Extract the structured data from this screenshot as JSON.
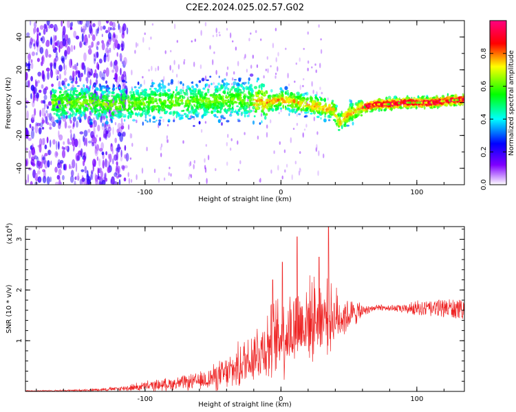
{
  "title": "C2E2.2024.025.02.57.G02",
  "chart_data": [
    {
      "type": "heatmap",
      "xlabel": "Height of straight line (km)",
      "ylabel": "Frequency (Hz)",
      "xlim": [
        -188,
        135
      ],
      "ylim": [
        -50,
        50
      ],
      "x_ticks": [
        -100,
        0,
        100
      ],
      "y_ticks": [
        -40,
        -20,
        0,
        20,
        40
      ],
      "ridge": {
        "description_values": "dominant frequency (Hz) vs height (km)",
        "x": [
          -190,
          -150,
          -120,
          -100,
          -60,
          -30,
          -10,
          0,
          20,
          38,
          43,
          50,
          60,
          70,
          80,
          90,
          100,
          110,
          120,
          135
        ],
        "y": [
          0,
          0,
          -1,
          0,
          1,
          2,
          0,
          2,
          -1,
          -4,
          -12,
          -7,
          -3,
          -1,
          -1,
          0,
          0,
          0,
          1,
          2
        ]
      },
      "colorbar": {
        "label": "Normalized spectral amplitude",
        "range": [
          0,
          1
        ],
        "ticks": [
          0.0,
          0.2,
          0.4,
          0.6,
          0.8
        ],
        "colormap": [
          "#ffffff",
          "#8000ff",
          "#0000ff",
          "#00ffff",
          "#00ff00",
          "#ffff00",
          "#ff0000",
          "#ff0080"
        ]
      }
    },
    {
      "type": "line",
      "xlabel": "Height of straight line (km)",
      "ylabel": "SNR (10 * v/v)",
      "y_scale_note": "(x10^4)",
      "xlim": [
        -188,
        135
      ],
      "ylim": [
        0,
        3.25
      ],
      "x_ticks": [
        -100,
        0,
        100
      ],
      "y_ticks": [
        1,
        2,
        3
      ],
      "series": [
        {
          "color": "#ee2222",
          "envelope": {
            "x": [
              -188,
              -150,
              -120,
              -100,
              -80,
              -60,
              -40,
              -30,
              -20,
              -10,
              0,
              10,
              20,
              30,
              40,
              50,
              60,
              70,
              80,
              90,
              100,
              110,
              120,
              135
            ],
            "mean": [
              0.01,
              0.02,
              0.05,
              0.1,
              0.15,
              0.2,
              0.35,
              0.5,
              0.75,
              0.9,
              1.1,
              1.25,
              1.4,
              1.5,
              1.45,
              1.5,
              1.6,
              1.65,
              1.65,
              1.62,
              1.65,
              1.62,
              1.65,
              1.6
            ],
            "spread": [
              0.01,
              0.02,
              0.05,
              0.12,
              0.15,
              0.2,
              0.4,
              0.55,
              0.7,
              0.85,
              1.0,
              1.0,
              0.95,
              0.9,
              0.7,
              0.4,
              0.12,
              0.06,
              0.06,
              0.08,
              0.15,
              0.15,
              0.18,
              0.2
            ],
            "peaks": [
              [
                -6,
                2.2
              ],
              [
                1,
                2.55
              ],
              [
                12,
                3.05
              ],
              [
                35,
                3.3
              ],
              [
                28,
                2.65
              ]
            ]
          }
        }
      ]
    }
  ]
}
